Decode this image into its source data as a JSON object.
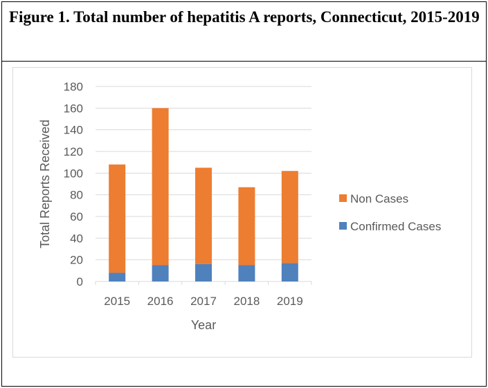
{
  "title": "Figure 1. Total number of hepatitis A reports, Connecticut, 2015-2019",
  "chart_data": {
    "type": "bar",
    "stacked": true,
    "categories": [
      "2015",
      "2016",
      "2017",
      "2018",
      "2019"
    ],
    "series": [
      {
        "name": "Confirmed Cases",
        "values": [
          8,
          15,
          16,
          15,
          17
        ],
        "color": "#4f81bd"
      },
      {
        "name": "Non Cases",
        "values": [
          100,
          145,
          89,
          72,
          85
        ],
        "color": "#ed7d31"
      }
    ],
    "xlabel": "Year",
    "ylabel": "Total Reports Received",
    "ylim": [
      0,
      180
    ],
    "yticks": [
      0,
      20,
      40,
      60,
      80,
      100,
      120,
      140,
      160,
      180
    ],
    "grid": true,
    "legend": "right"
  }
}
